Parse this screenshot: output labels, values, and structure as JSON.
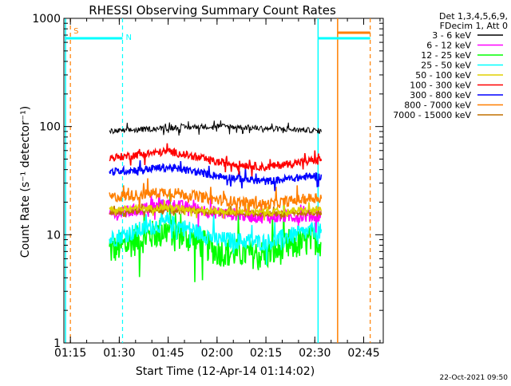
{
  "chart_data": {
    "type": "line",
    "title": "RHESSI Observing Summary Count Rates",
    "xlabel": "Start Time (12-Apr-14 01:14:02)",
    "ylabel": "Count Rate (s⁻¹ detector⁻¹)",
    "yscale": "log",
    "ylim": [
      1,
      1000
    ],
    "xlim": [
      "01:13",
      "02:51"
    ],
    "x_ticks": [
      "01:15",
      "01:30",
      "01:45",
      "02:00",
      "02:15",
      "02:30",
      "02:45"
    ],
    "y_ticks": [
      "1",
      "10",
      "100",
      "1000"
    ],
    "grid": false,
    "legend_position": "right",
    "legend_header": [
      "Det 1,3,4,5,6,9,",
      "FDecim 1, Att 0"
    ],
    "series": [
      {
        "name": "3 - 6 keV",
        "color": "#000000",
        "x": [
          "01:27",
          "01:45",
          "02:00",
          "02:15",
          "02:30",
          "02:32"
        ],
        "values": [
          90,
          97,
          101,
          96,
          92,
          91
        ]
      },
      {
        "name": "6 - 12 keV",
        "color": "#ff00ff",
        "x": [
          "01:27",
          "01:45",
          "02:00",
          "02:15",
          "02:30",
          "02:32"
        ],
        "values": [
          15,
          19,
          16,
          14.5,
          15,
          15
        ]
      },
      {
        "name": "12 - 25 keV",
        "color": "#00ff00",
        "x": [
          "01:27",
          "01:45",
          "02:00",
          "02:15",
          "02:30",
          "02:32"
        ],
        "values": [
          7,
          11,
          7,
          6.5,
          9,
          8.5
        ]
      },
      {
        "name": "25 - 50 keV",
        "color": "#00ffff",
        "x": [
          "01:27",
          "01:45",
          "02:00",
          "02:15",
          "02:30",
          "02:32"
        ],
        "values": [
          9,
          13,
          9,
          8.5,
          11,
          10.5
        ]
      },
      {
        "name": "50 - 100 keV",
        "color": "#e0d000",
        "x": [
          "01:27",
          "01:45",
          "02:00",
          "02:15",
          "02:30",
          "02:32"
        ],
        "values": [
          17,
          18,
          16.5,
          16,
          17,
          17
        ]
      },
      {
        "name": "100 - 300 keV",
        "color": "#ff0000",
        "x": [
          "01:27",
          "01:45",
          "02:00",
          "02:15",
          "02:30",
          "02:32"
        ],
        "values": [
          51,
          59,
          47,
          42,
          49,
          50
        ]
      },
      {
        "name": "300 - 800 keV",
        "color": "#0000ff",
        "x": [
          "01:27",
          "01:45",
          "02:00",
          "02:15",
          "02:30",
          "02:32"
        ],
        "values": [
          38,
          42,
          35,
          31,
          35,
          34
        ]
      },
      {
        "name": "800 - 7000 keV",
        "color": "#ff7f00",
        "x": [
          "01:27",
          "01:45",
          "02:00",
          "02:15",
          "02:30",
          "02:32"
        ],
        "values": [
          22,
          25,
          21,
          19,
          22,
          22
        ]
      },
      {
        "name": "7000 - 15000 keV",
        "color": "#c07000",
        "x": [
          "01:27",
          "01:45",
          "02:00",
          "02:15",
          "02:30",
          "02:32"
        ],
        "values": [
          16,
          17,
          16,
          15.5,
          16,
          16
        ]
      }
    ],
    "markers": {
      "cyan_lines": [
        "01:13.5",
        "02:31"
      ],
      "cyan_dashed": [
        "01:31"
      ],
      "orange_lines": [
        "02:37"
      ],
      "orange_dashed": [
        "01:15",
        "02:47"
      ],
      "labels": [
        {
          "text": "S",
          "color": "#ff7f00",
          "x": "01:15"
        },
        {
          "text": "N",
          "color": "#00ffff",
          "x": "01:31"
        }
      ]
    },
    "footer": "22-Oct-2021 09:50"
  }
}
